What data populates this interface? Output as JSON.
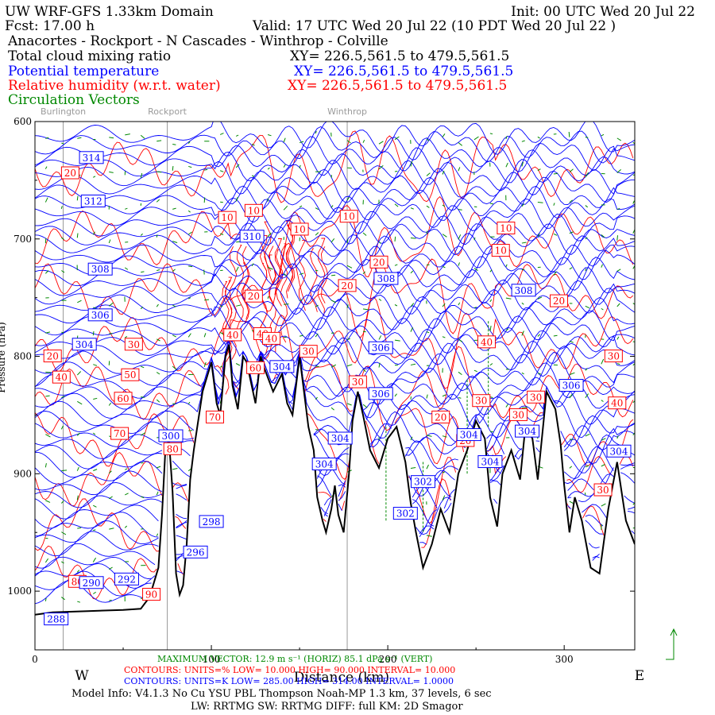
{
  "header": {
    "model": "UW WRF-GFS 1.33km Domain",
    "init": "Init: 00 UTC Wed 20 Jul 22",
    "fcst": "Fcst:    17.00 h",
    "valid": "Valid: 17 UTC Wed 20 Jul 22   (10 PDT Wed 20 Jul 22  )",
    "route": "Anacortes - Rockport - N Cascades - Winthrop - Colville"
  },
  "fields": [
    {
      "name": "Total cloud mixing ratio",
      "xy": "XY= 226.5,561.5 to 479.5,561.5",
      "color": "#000000"
    },
    {
      "name": "Potential temperature",
      "xy": "XY= 226.5,561.5 to 479.5,561.5",
      "color": "#0000ff"
    },
    {
      "name": "Relative humidity (w.r.t. water)",
      "xy": "XY= 226.5,561.5 to 479.5,561.5",
      "color": "#ff0000"
    },
    {
      "name": "Circulation Vectors",
      "xy": "",
      "color": "#008800"
    }
  ],
  "footer": {
    "max_vector": "MAXIMUM VECTOR:  12.9 m s⁻¹ (HORIZ)       85.1 dPa s⁻¹ (VERT)",
    "rh_contours": "CONTOURS:  UNITS=%  LOW=  10.000        HIGH=  90.000        INTERVAL=   10.000",
    "th_contours": "CONTOURS:  UNITS=K  LOW=  285.00        HIGH=  314.00        INTERVAL=   1.0000",
    "model_info": "Model Info: V4.1.3    No Cu    YSU PBL  Thompson      Noah-MP    1.3 km,   37 levels,     6 sec",
    "schemes": "LW: RRTMG SW: RRTMG    DIFF: full    KM: 2D Smagor"
  },
  "colors": {
    "theta": "#0000ff",
    "rh": "#ff0000",
    "vec": "#008800",
    "terrain": "#000000",
    "place": "#9a9a9a"
  },
  "chart_data": {
    "type": "line",
    "title": "Anacortes - Rockport - N Cascades - Winthrop - Colville",
    "xlabel": "Distance (km)",
    "ylabel": "Pressure (hPa)",
    "xlim": [
      0,
      340
    ],
    "ylim": [
      1050,
      600
    ],
    "xticks": [
      "0",
      "100",
      "200",
      "300"
    ],
    "yticks": [
      "600",
      "700",
      "800",
      "900",
      "1000"
    ],
    "axis_end_labels": {
      "left": "W",
      "right": "E"
    },
    "places": [
      {
        "name": "Burlington",
        "x": 16
      },
      {
        "name": "Rockport",
        "x": 75
      },
      {
        "name": "Winthrop",
        "x": 177
      }
    ],
    "terrain": {
      "x": [
        0,
        10,
        30,
        50,
        60,
        65,
        70,
        72,
        74,
        76,
        78,
        80,
        82,
        84,
        86,
        88,
        90,
        95,
        100,
        103,
        105,
        108,
        110,
        112,
        115,
        118,
        120,
        125,
        128,
        130,
        135,
        140,
        143,
        146,
        150,
        155,
        158,
        160,
        163,
        165,
        168,
        170,
        172,
        175,
        178,
        180,
        183,
        186,
        190,
        195,
        200,
        205,
        210,
        213,
        216,
        220,
        225,
        230,
        235,
        240,
        245,
        250,
        255,
        258,
        262,
        265,
        270,
        275,
        278,
        282,
        285,
        290,
        295,
        298,
        300,
        303,
        306,
        310,
        315,
        320,
        325,
        330,
        335,
        340
      ],
      "y": [
        1020,
        1018,
        1017,
        1016,
        1015,
        1005,
        980,
        935,
        878,
        872,
        915,
        985,
        1003,
        995,
        960,
        905,
        880,
        830,
        805,
        840,
        850,
        800,
        790,
        825,
        845,
        800,
        805,
        840,
        800,
        810,
        830,
        815,
        840,
        850,
        800,
        860,
        880,
        920,
        940,
        950,
        930,
        910,
        935,
        950,
        900,
        855,
        830,
        850,
        880,
        895,
        870,
        860,
        890,
        925,
        950,
        980,
        960,
        930,
        950,
        900,
        880,
        855,
        870,
        920,
        945,
        900,
        880,
        905,
        860,
        870,
        905,
        830,
        845,
        875,
        910,
        950,
        920,
        940,
        980,
        985,
        930,
        890,
        940,
        960
      ]
    },
    "potential_temperature": {
      "levels_K": [
        314,
        312,
        310,
        308,
        306,
        304,
        302,
        300,
        298,
        292,
        290,
        288
      ],
      "labels": [
        {
          "value": "314",
          "x": 32,
          "p": 631
        },
        {
          "value": "312",
          "x": 33,
          "p": 668
        },
        {
          "value": "310",
          "x": 123,
          "p": 698
        },
        {
          "value": "308",
          "x": 37,
          "p": 726
        },
        {
          "value": "308",
          "x": 199,
          "p": 734
        },
        {
          "value": "308",
          "x": 277,
          "p": 744
        },
        {
          "value": "306",
          "x": 37,
          "p": 765
        },
        {
          "value": "306",
          "x": 196,
          "p": 793
        },
        {
          "value": "306",
          "x": 196,
          "p": 832
        },
        {
          "value": "306",
          "x": 304,
          "p": 825
        },
        {
          "value": "304",
          "x": 28,
          "p": 790
        },
        {
          "value": "304",
          "x": 140,
          "p": 809
        },
        {
          "value": "304",
          "x": 173,
          "p": 870
        },
        {
          "value": "304",
          "x": 164,
          "p": 892
        },
        {
          "value": "304",
          "x": 279,
          "p": 864
        },
        {
          "value": "304",
          "x": 258,
          "p": 890
        },
        {
          "value": "304",
          "x": 331,
          "p": 881
        },
        {
          "value": "304",
          "x": 246,
          "p": 867
        },
        {
          "value": "302",
          "x": 220,
          "p": 907
        },
        {
          "value": "302",
          "x": 210,
          "p": 934
        },
        {
          "value": "300",
          "x": 77,
          "p": 868
        },
        {
          "value": "298",
          "x": 100,
          "p": 941
        },
        {
          "value": "296",
          "x": 91,
          "p": 967
        },
        {
          "value": "292",
          "x": 52,
          "p": 990
        },
        {
          "value": "290",
          "x": 32,
          "p": 993
        },
        {
          "value": "288",
          "x": 12,
          "p": 1024
        }
      ]
    },
    "relative_humidity": {
      "levels_percent": [
        10,
        20,
        30,
        40,
        50,
        60,
        70,
        80,
        90
      ],
      "labels": [
        {
          "value": "20",
          "x": 20,
          "p": 644
        },
        {
          "value": "10",
          "x": 109,
          "p": 682
        },
        {
          "value": "10",
          "x": 124,
          "p": 676
        },
        {
          "value": "10",
          "x": 150,
          "p": 692
        },
        {
          "value": "10",
          "x": 178,
          "p": 681
        },
        {
          "value": "10",
          "x": 267,
          "p": 691
        },
        {
          "value": "10",
          "x": 264,
          "p": 710
        },
        {
          "value": "20",
          "x": 195,
          "p": 720
        },
        {
          "value": "20",
          "x": 177,
          "p": 740
        },
        {
          "value": "20",
          "x": 124,
          "p": 749
        },
        {
          "value": "20",
          "x": 297,
          "p": 753
        },
        {
          "value": "20",
          "x": 10,
          "p": 800
        },
        {
          "value": "20",
          "x": 230,
          "p": 852
        },
        {
          "value": "20",
          "x": 244,
          "p": 872
        },
        {
          "value": "30",
          "x": 56,
          "p": 790
        },
        {
          "value": "30",
          "x": 155,
          "p": 796
        },
        {
          "value": "30",
          "x": 183,
          "p": 822
        },
        {
          "value": "30",
          "x": 253,
          "p": 838
        },
        {
          "value": "30",
          "x": 284,
          "p": 835
        },
        {
          "value": "30",
          "x": 274,
          "p": 850
        },
        {
          "value": "30",
          "x": 328,
          "p": 800
        },
        {
          "value": "30",
          "x": 322,
          "p": 914
        },
        {
          "value": "40",
          "x": 112,
          "p": 782
        },
        {
          "value": "40",
          "x": 129,
          "p": 781
        },
        {
          "value": "40",
          "x": 134,
          "p": 785
        },
        {
          "value": "40",
          "x": 15,
          "p": 818
        },
        {
          "value": "40",
          "x": 256,
          "p": 788
        },
        {
          "value": "40",
          "x": 330,
          "p": 840
        },
        {
          "value": "50",
          "x": 54,
          "p": 816
        },
        {
          "value": "60",
          "x": 50,
          "p": 836
        },
        {
          "value": "60",
          "x": 125,
          "p": 810
        },
        {
          "value": "70",
          "x": 48,
          "p": 866
        },
        {
          "value": "70",
          "x": 102,
          "p": 852
        },
        {
          "value": "80",
          "x": 78,
          "p": 879
        },
        {
          "value": "80",
          "x": 24,
          "p": 992
        },
        {
          "value": "90",
          "x": 66,
          "p": 1003
        }
      ]
    },
    "circulation_vectors": {
      "max_horizontal_m_s": 12.9,
      "max_vertical_dPa_s": 85.1
    }
  }
}
